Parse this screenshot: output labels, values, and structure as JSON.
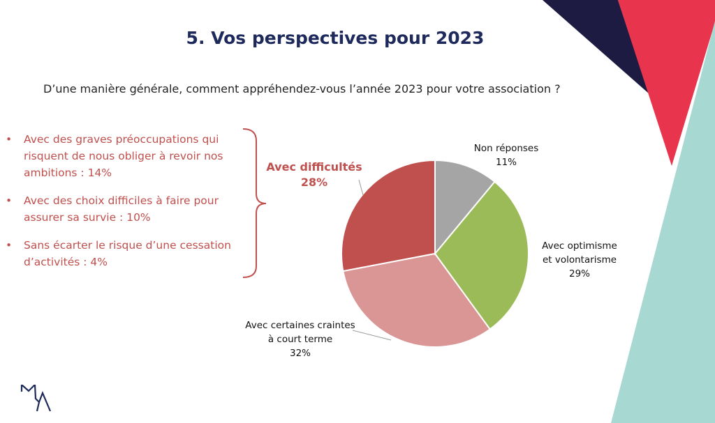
{
  "title": "5.  Vos perspectives pour 2023",
  "question": "D’une manière générale, comment appréhendez-vous l’année 2023 pour votre association ?",
  "bullets": [
    "Avec des graves préoccupations qui risquent de nous obliger à revoir nos ambitions : 14%",
    "Avec des choix difficiles à faire pour assurer sa survie : 10%",
    "Sans écarter le risque d’une cessation d’activités : 4%"
  ],
  "bullet_symbol": "•",
  "logo_text": "MA",
  "colors": {
    "title": "#1f2a5c",
    "accent": "#c0504d",
    "navy": "#1e1b42",
    "red": "#e8344d",
    "teal": "#a7d8d2"
  },
  "chart_data": {
    "type": "pie",
    "start": "top",
    "direction": "clockwise",
    "slices": [
      {
        "label": "Non réponses",
        "pct_label": "11%",
        "value": 11,
        "color": "#a5a5a5"
      },
      {
        "label_lines": [
          "Avec optimisme",
          "et volontarisme"
        ],
        "pct_label": "29%",
        "value": 29,
        "color": "#9bbb59"
      },
      {
        "label_lines": [
          "Avec certaines craintes",
          "à court terme"
        ],
        "pct_label": "32%",
        "value": 32,
        "color": "#d99694"
      },
      {
        "label": "Avec difficultés",
        "pct_label": "28%",
        "value": 28,
        "color": "#c0504d"
      }
    ]
  }
}
